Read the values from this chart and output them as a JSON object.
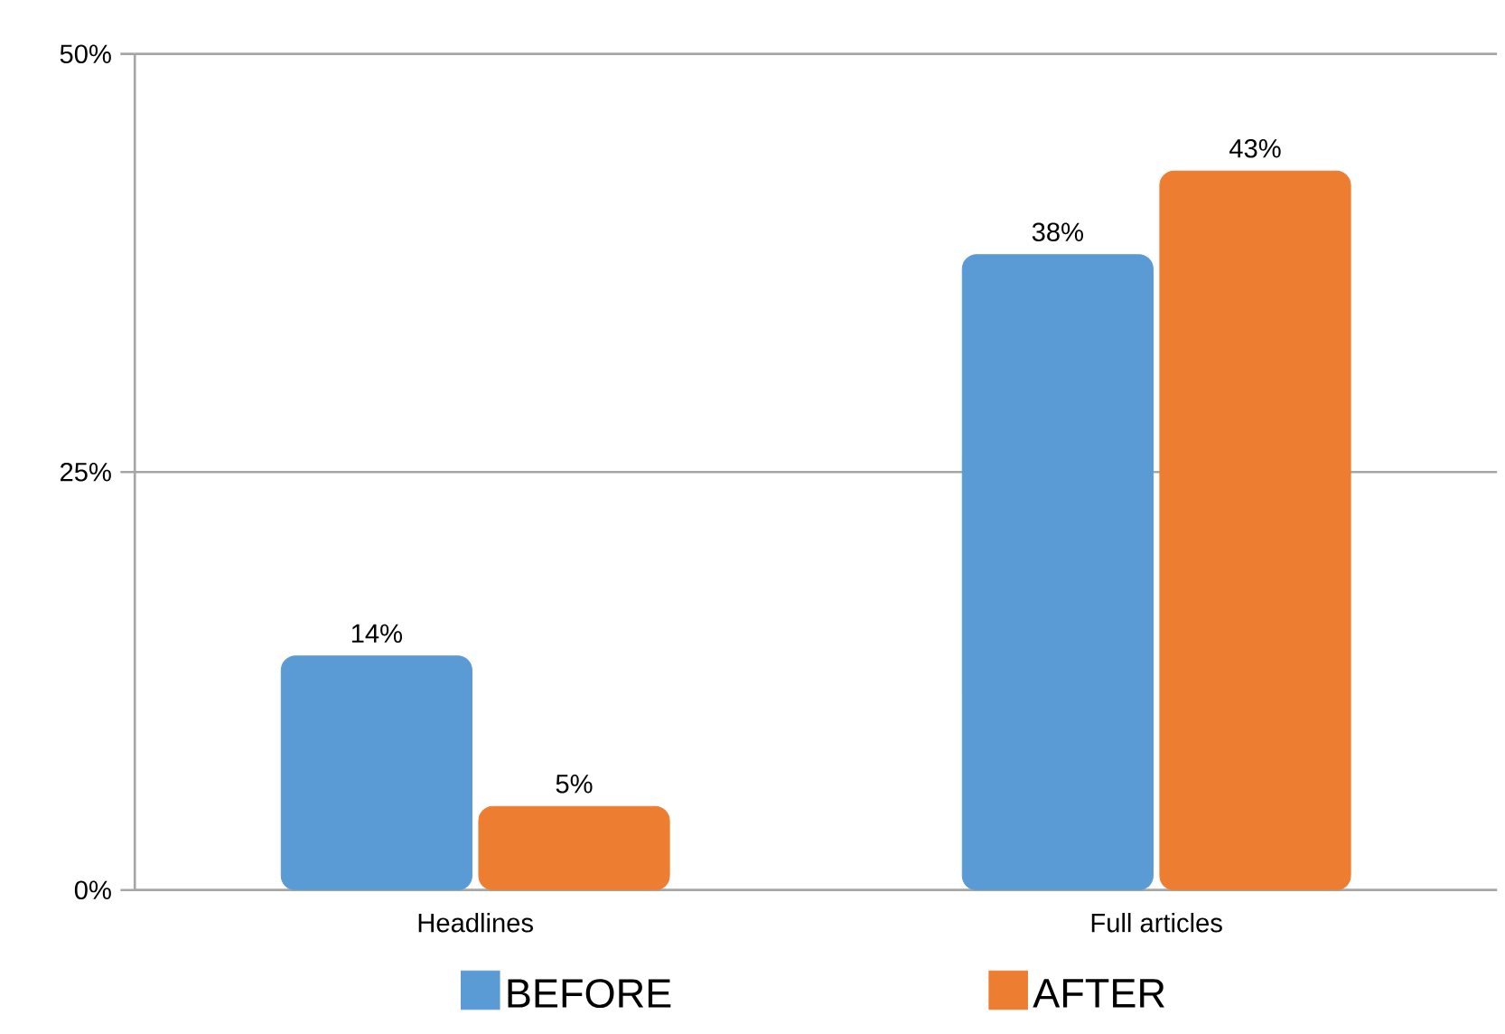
{
  "chart_data": {
    "type": "bar",
    "categories": [
      "Headlines",
      "Full articles"
    ],
    "series": [
      {
        "name": "BEFORE",
        "color": "#5b9bd5",
        "values": [
          14,
          38
        ],
        "value_labels": [
          "14%",
          "38%"
        ]
      },
      {
        "name": "AFTER",
        "color": "#ed7d31",
        "values": [
          5,
          43
        ],
        "value_labels": [
          "5%",
          "43%"
        ]
      }
    ],
    "ylim": [
      0,
      50
    ],
    "yticks": [
      {
        "value": 0,
        "label": "0%"
      },
      {
        "value": 25,
        "label": "25%"
      },
      {
        "value": 50,
        "label": "50%"
      }
    ],
    "grid": "y",
    "legend": "bottom"
  }
}
